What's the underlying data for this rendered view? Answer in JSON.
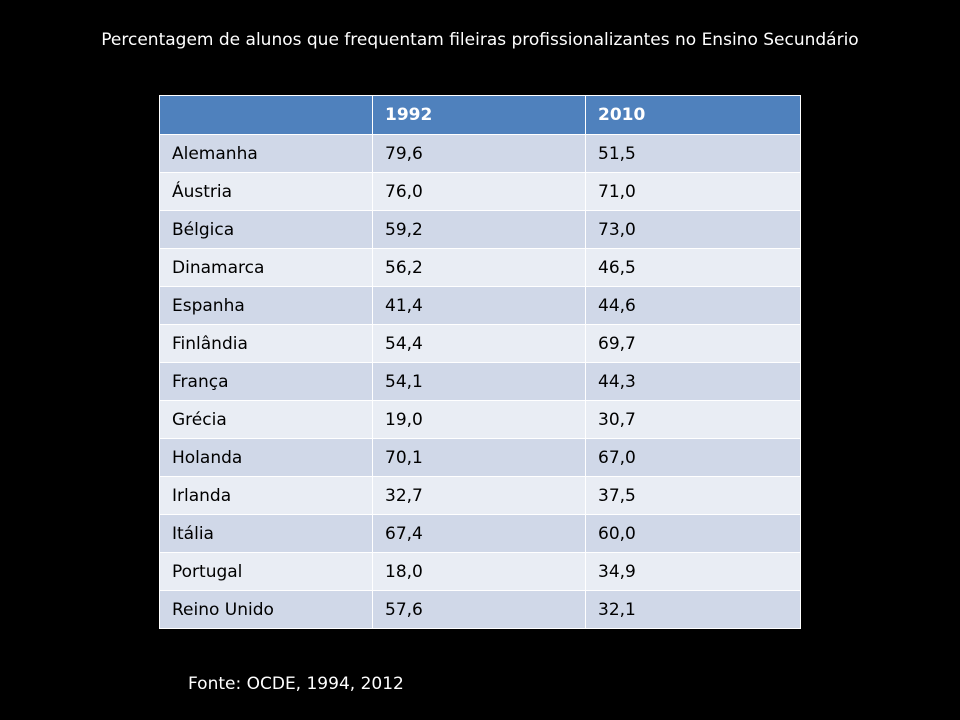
{
  "title": "Percentagem de alunos que frequentam fileiras profissionalizantes no Ensino  Secundário",
  "table": {
    "headers": [
      "",
      "1992",
      "2010"
    ],
    "rows": [
      [
        "Alemanha",
        "79,6",
        "51,5"
      ],
      [
        "Áustria",
        "76,0",
        "71,0"
      ],
      [
        "Bélgica",
        "59,2",
        "73,0"
      ],
      [
        "Dinamarca",
        "56,2",
        "46,5"
      ],
      [
        "Espanha",
        "41,4",
        "44,6"
      ],
      [
        "Finlândia",
        "54,4",
        "69,7"
      ],
      [
        "França",
        "54,1",
        "44,3"
      ],
      [
        "Grécia",
        "19,0",
        "30,7"
      ],
      [
        "Holanda",
        "70,1",
        "67,0"
      ],
      [
        "Irlanda",
        "32,7",
        "37,5"
      ],
      [
        "Itália",
        "67,4",
        "60,0"
      ],
      [
        "Portugal",
        "18,0",
        "34,9"
      ],
      [
        "Reino Unido",
        "57,6",
        "32,1"
      ]
    ]
  },
  "source": "Fonte: OCDE, 1994, 2012",
  "colors": {
    "background": "#000000",
    "header": "#4f81bd",
    "row_odd": "#d0d8e8",
    "row_even": "#e9edf4"
  }
}
